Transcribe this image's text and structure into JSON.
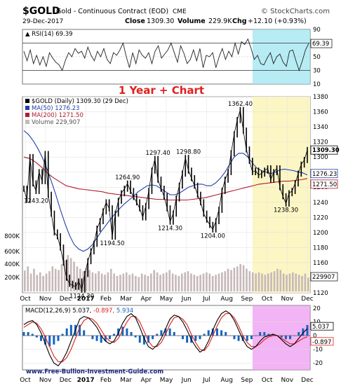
{
  "header": {
    "symbol": "$GOLD",
    "description": "Gold - Continuous Contract (EOD)",
    "exchange": "CME",
    "date": "29-Dec-2017",
    "close_label": "Close",
    "close_value": "1309.30",
    "volume_label": "Volume",
    "volume_value": "229.9K",
    "chg_label": "Chg",
    "chg_value": "+12.10 (+0.93%)",
    "source": "© StockCharts.com"
  },
  "overlay_title": "1 Year + Chart",
  "watermark": "www.Free-Bullion-Investment-Guide.com",
  "colors": {
    "price": "#000000",
    "ma50": "#1f3fa8",
    "ma200": "#b01c2e",
    "volume": "#c7b8b8",
    "rsi_highlight": "#9fe6f0",
    "price_highlight": "#fbf6c4",
    "macd_highlight": "#ee9bf0",
    "macd_line": "#000000",
    "signal_line": "#e0201c",
    "histogram": "#1565c0"
  },
  "chart_data": [
    {
      "panel": "rsi",
      "type": "line",
      "label": "RSI(14) 69.39",
      "last_value": "69.39",
      "ylim": [
        10,
        90
      ],
      "y_ticks": [
        "90",
        "70",
        "50",
        "30",
        "10"
      ],
      "reference_lines": [
        70,
        30
      ],
      "highlight_from_month": "Oct",
      "values": [
        58,
        44,
        60,
        40,
        52,
        38,
        50,
        36,
        56,
        48,
        42,
        38,
        30,
        45,
        56,
        50,
        62,
        55,
        58,
        48,
        64,
        52,
        44,
        58,
        50,
        62,
        46,
        40,
        56,
        52,
        60,
        70,
        50,
        34,
        56,
        40,
        60,
        52,
        48,
        56,
        40,
        58,
        66,
        48,
        54,
        60,
        70,
        56,
        42,
        66,
        55,
        40,
        46,
        60,
        44,
        62,
        34,
        52,
        50,
        56,
        34,
        50,
        62,
        46,
        58,
        50,
        70,
        54,
        72,
        68,
        76,
        62,
        46,
        52,
        40,
        38,
        48,
        56,
        40,
        50,
        54,
        42,
        36,
        58,
        60,
        44,
        30,
        44,
        60,
        69.39
      ]
    },
    {
      "panel": "price",
      "type": "line",
      "label": "$GOLD (Daily) 1309.30 (29 Dec)",
      "last_value": "1309.30",
      "ylim": [
        1120,
        1380
      ],
      "y_ticks": [
        "1380",
        "1360",
        "1340",
        "1320",
        "1300",
        "1280",
        "1260",
        "1240",
        "1220",
        "1200",
        "1180",
        "1160",
        "1140",
        "1120"
      ],
      "x_labels": [
        "Oct",
        "Nov",
        "Dec",
        "2017",
        "Feb",
        "Mar",
        "Apr",
        "May",
        "Jun",
        "Jul",
        "Aug",
        "Sep",
        "Oct",
        "Nov",
        "Dec"
      ],
      "highlight_from_month": "Oct",
      "legend": [
        {
          "label": "$GOLD (Daily) 1309.30 (29 Dec)"
        },
        {
          "label": "MA(50) 1276.23"
        },
        {
          "label": "MA(200) 1271.50"
        },
        {
          "label": "Volume 229,907"
        }
      ],
      "price_tags": [
        "1309.30",
        "1276.23",
        "1271.50"
      ],
      "annotations": [
        {
          "text": "1243.20",
          "x": 0,
          "y": 1243.2,
          "anchor": "left"
        },
        {
          "text": "1124.30",
          "x": 19,
          "y": 1124.3,
          "anchor": "below"
        },
        {
          "text": "1194.50",
          "x": 29,
          "y": 1194.5,
          "anchor": "below"
        },
        {
          "text": "1264.90",
          "x": 34,
          "y": 1264.9,
          "anchor": "above"
        },
        {
          "text": "1297.40",
          "x": 44,
          "y": 1297.4,
          "anchor": "above"
        },
        {
          "text": "1214.30",
          "x": 48,
          "y": 1214.3,
          "anchor": "below"
        },
        {
          "text": "1298.80",
          "x": 54,
          "y": 1298.8,
          "anchor": "above"
        },
        {
          "text": "1204.00",
          "x": 62,
          "y": 1204.0,
          "anchor": "below"
        },
        {
          "text": "1362.40",
          "x": 71,
          "y": 1362.4,
          "anchor": "above"
        },
        {
          "text": "1238.30",
          "x": 86,
          "y": 1238.3,
          "anchor": "below"
        }
      ],
      "series": [
        {
          "name": "$GOLD",
          "values": [
            1258,
            1243.2,
            1300,
            1265,
            1255,
            1280,
            1268,
            1304,
            1250,
            1225,
            1200,
            1195,
            1180,
            1160,
            1140,
            1132,
            1130,
            1128,
            1135,
            1124.3,
            1145,
            1162,
            1175,
            1185,
            1205,
            1215,
            1228,
            1240,
            1232,
            1194.5,
            1225,
            1242,
            1252,
            1258,
            1264.9,
            1255,
            1247,
            1240,
            1232,
            1220,
            1235,
            1255,
            1282,
            1297.4,
            1270,
            1258,
            1248,
            1232,
            1214.3,
            1225,
            1245,
            1262,
            1278,
            1298.8,
            1282,
            1272,
            1262,
            1250,
            1240,
            1225,
            1217,
            1210,
            1204,
            1215,
            1230,
            1255,
            1270,
            1280,
            1305,
            1330,
            1349,
            1362.4,
            1335,
            1310,
            1295,
            1280,
            1282,
            1276,
            1278,
            1282,
            1285,
            1270,
            1280,
            1285,
            1260,
            1248,
            1238.3,
            1252,
            1255,
            1265,
            1278,
            1290,
            1296,
            1309.3
          ]
        },
        {
          "name": "MA(50)",
          "values": [
            1335,
            1330,
            1322,
            1312,
            1300,
            1285,
            1268,
            1250,
            1230,
            1212,
            1196,
            1184,
            1178,
            1175,
            1178,
            1184,
            1193,
            1202,
            1210,
            1218,
            1225,
            1232,
            1238,
            1243,
            1248,
            1254,
            1258,
            1262,
            1263,
            1262,
            1258,
            1254,
            1250,
            1250,
            1252,
            1256,
            1260,
            1262,
            1264,
            1264,
            1262,
            1262,
            1266,
            1272,
            1280,
            1290,
            1300,
            1305,
            1305,
            1300,
            1292,
            1285,
            1282,
            1280,
            1278,
            1280,
            1283,
            1284,
            1283,
            1282,
            1280,
            1279,
            1276.23
          ]
        },
        {
          "name": "MA(200)",
          "values": [
            1300,
            1298,
            1293,
            1286,
            1278,
            1272,
            1267,
            1262,
            1260,
            1258,
            1257,
            1256,
            1255,
            1254,
            1252,
            1251,
            1250,
            1249,
            1248,
            1247,
            1246,
            1245,
            1244,
            1244,
            1243,
            1243,
            1243,
            1243,
            1244,
            1245,
            1246,
            1248,
            1250,
            1252,
            1254,
            1256,
            1258,
            1260,
            1262,
            1264,
            1265,
            1266,
            1267,
            1268,
            1268,
            1269,
            1270,
            1271.5
          ]
        },
        {
          "name": "Volume",
          "values": [
            350,
            420,
            300,
            380,
            280,
            320,
            260,
            300,
            340,
            420,
            380,
            360,
            460,
            520,
            610,
            560,
            500,
            420,
            380,
            340,
            400,
            360,
            320,
            300,
            340,
            300,
            280,
            320,
            380,
            300,
            260,
            280,
            300,
            320,
            280,
            300,
            260,
            240,
            300,
            280,
            260,
            300,
            360,
            320,
            280,
            300,
            320,
            360,
            300,
            280,
            260,
            300,
            320,
            340,
            300,
            280,
            260,
            280,
            300,
            320,
            300,
            260,
            280,
            300,
            320,
            340,
            380,
            360,
            400,
            420,
            460,
            440,
            380,
            340,
            320,
            300,
            320,
            300,
            280,
            300,
            320,
            340,
            380,
            360,
            300,
            280,
            300,
            320,
            300,
            280,
            260,
            300,
            229.9
          ]
        }
      ],
      "volume_ticks": [
        "800K",
        "600K",
        "400K",
        "200K"
      ],
      "volume_tag": "229907"
    },
    {
      "panel": "macd",
      "type": "line",
      "label_name": "MACD(12,26,9)",
      "label_macd": "5.037",
      "label_signal": "-0.897",
      "label_hist": "5.934",
      "ylim": [
        -25,
        22
      ],
      "y_ticks": [
        "20",
        "10",
        "0",
        "-10",
        "-20"
      ],
      "tags": [
        "5.037",
        "-0.897"
      ],
      "x_labels": [
        "Oct",
        "Nov",
        "Dec",
        "2017",
        "Feb",
        "Mar",
        "Apr",
        "May",
        "Jun",
        "Jul",
        "Aug",
        "Sep",
        "Oct",
        "Nov",
        "Dec"
      ],
      "highlight_from_month": "Oct",
      "series": [
        {
          "name": "MACD",
          "values": [
            8,
            10,
            11,
            8,
            2,
            -6,
            -14,
            -20,
            -22,
            -18,
            -12,
            -4,
            4,
            12,
            14,
            13,
            10,
            6,
            0,
            -4,
            -6,
            -4,
            2,
            9,
            14,
            16,
            13,
            6,
            -2,
            -8,
            -10,
            -7,
            -2,
            5,
            12,
            15,
            14,
            10,
            4,
            -3,
            -8,
            -12,
            -10,
            -4,
            4,
            11,
            16,
            18,
            16,
            11,
            4,
            -3,
            -8,
            -10,
            -8,
            -4,
            -1,
            0,
            1,
            0,
            -3,
            -6,
            -8,
            -6,
            -2,
            2,
            5.037
          ]
        },
        {
          "name": "Signal",
          "values": [
            6,
            8,
            10,
            9,
            5,
            -1,
            -8,
            -15,
            -19,
            -19,
            -16,
            -10,
            -2,
            6,
            11,
            13,
            12,
            9,
            4,
            -1,
            -4,
            -5,
            -2,
            4,
            10,
            14,
            14,
            10,
            3,
            -4,
            -8,
            -8,
            -5,
            1,
            8,
            13,
            14,
            12,
            8,
            1,
            -5,
            -10,
            -11,
            -7,
            0,
            7,
            13,
            16,
            16,
            13,
            7,
            0,
            -5,
            -8,
            -8,
            -6,
            -3,
            -1,
            0,
            0,
            -2,
            -4,
            -6,
            -6,
            -4,
            -2,
            -0.897
          ]
        }
      ]
    }
  ]
}
